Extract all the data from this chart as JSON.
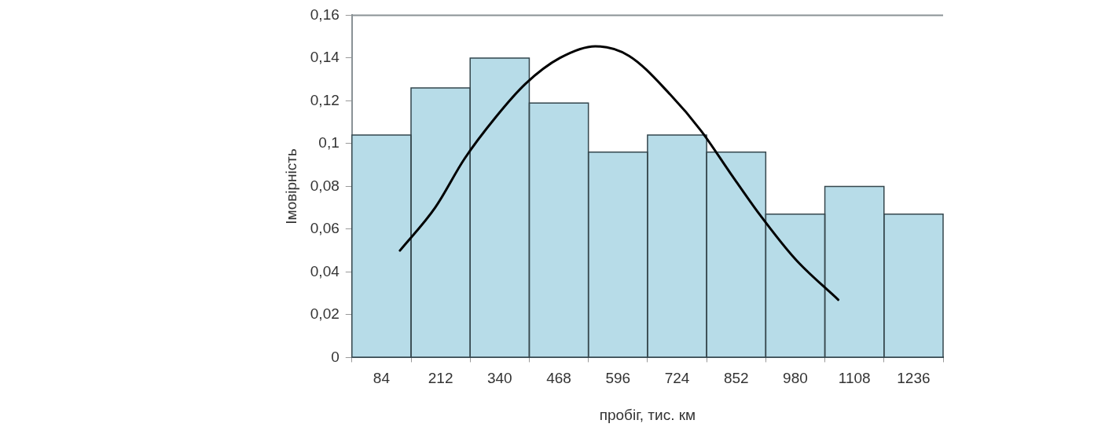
{
  "chart_data": {
    "type": "histogram",
    "xlabel": "пробіг, тис. км",
    "ylabel": "Імовірність",
    "bins": [
      20,
      148,
      276,
      404,
      532,
      660,
      788,
      916,
      1044,
      1172,
      1300
    ],
    "values": [
      0.104,
      0.126,
      0.14,
      0.119,
      0.096,
      0.104,
      0.096,
      0.067,
      0.08,
      0.067
    ],
    "color": "#b7dce8",
    "series": [
      {
        "type": "line",
        "color": "#000000",
        "x": [
          124,
          200,
          264,
          330,
          396,
          470,
          547,
          620,
          709,
          776,
          840,
          904,
          980,
          1073
        ],
        "values": [
          0.05,
          0.07,
          0.093,
          0.112,
          0.128,
          0.14,
          0.1455,
          0.141,
          0.123,
          0.106,
          0.086,
          0.0665,
          0.046,
          0.027
        ]
      }
    ],
    "xlim": [
      20,
      1300
    ],
    "xticks": [
      84,
      212,
      340,
      468,
      596,
      724,
      852,
      980,
      1108,
      1236
    ],
    "ylim": [
      0,
      0.16
    ],
    "yticks": [
      0,
      {
        "value": 0.02,
        "label": "0,02"
      },
      {
        "value": 0.04,
        "label": "0,04"
      },
      {
        "value": 0.06,
        "label": "0,06"
      },
      {
        "value": 0.08,
        "label": "0,08"
      },
      {
        "value": 0.1,
        "label": "0,1"
      },
      {
        "value": 0.12,
        "label": "0,12"
      },
      {
        "value": 0.14,
        "label": "0,14"
      },
      {
        "value": 0.16,
        "label": "0,16"
      }
    ],
    "grid": false,
    "legend": false,
    "marker": "none",
    "line_style": "solid"
  }
}
